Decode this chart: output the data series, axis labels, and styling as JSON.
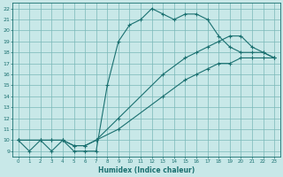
{
  "xlabel": "Humidex (Indice chaleur)",
  "bg_color": "#c8e8e8",
  "line_color": "#1a7070",
  "grid_color": "#7ab8b8",
  "xlim": [
    -0.5,
    23.5
  ],
  "ylim": [
    8.5,
    22.5
  ],
  "yticks": [
    9,
    10,
    11,
    12,
    13,
    14,
    15,
    16,
    17,
    18,
    19,
    20,
    21,
    22
  ],
  "xticks": [
    0,
    1,
    2,
    3,
    4,
    5,
    6,
    7,
    8,
    9,
    10,
    11,
    12,
    13,
    14,
    15,
    16,
    17,
    18,
    19,
    20,
    21,
    22,
    23
  ],
  "line1_x": [
    0,
    1,
    2,
    3,
    4,
    5,
    6,
    7,
    8,
    9,
    10,
    11,
    12,
    13,
    14,
    15,
    16,
    17,
    18,
    19,
    20,
    21,
    22,
    23
  ],
  "line1_y": [
    10,
    9,
    10,
    9,
    10,
    9,
    9,
    9,
    15,
    19,
    20.5,
    21,
    22,
    21.5,
    21,
    21.5,
    21.5,
    21,
    19.5,
    18.5,
    18,
    18,
    18,
    17.5
  ],
  "line2_x": [
    0,
    2,
    3,
    4,
    5,
    6,
    7,
    9,
    13,
    15,
    16,
    17,
    18,
    19,
    20,
    21,
    22,
    23
  ],
  "line2_y": [
    10,
    10,
    10,
    10,
    9.5,
    9.5,
    10,
    11,
    14,
    15.5,
    16,
    16.5,
    17,
    17,
    17.5,
    17.5,
    17.5,
    17.5
  ],
  "line3_x": [
    0,
    2,
    3,
    4,
    5,
    6,
    7,
    9,
    13,
    15,
    16,
    17,
    18,
    19,
    20,
    21,
    22,
    23
  ],
  "line3_y": [
    10,
    10,
    10,
    10,
    9.5,
    9.5,
    10,
    12,
    16,
    17.5,
    18,
    18.5,
    19,
    19.5,
    19.5,
    18.5,
    18,
    17.5
  ]
}
